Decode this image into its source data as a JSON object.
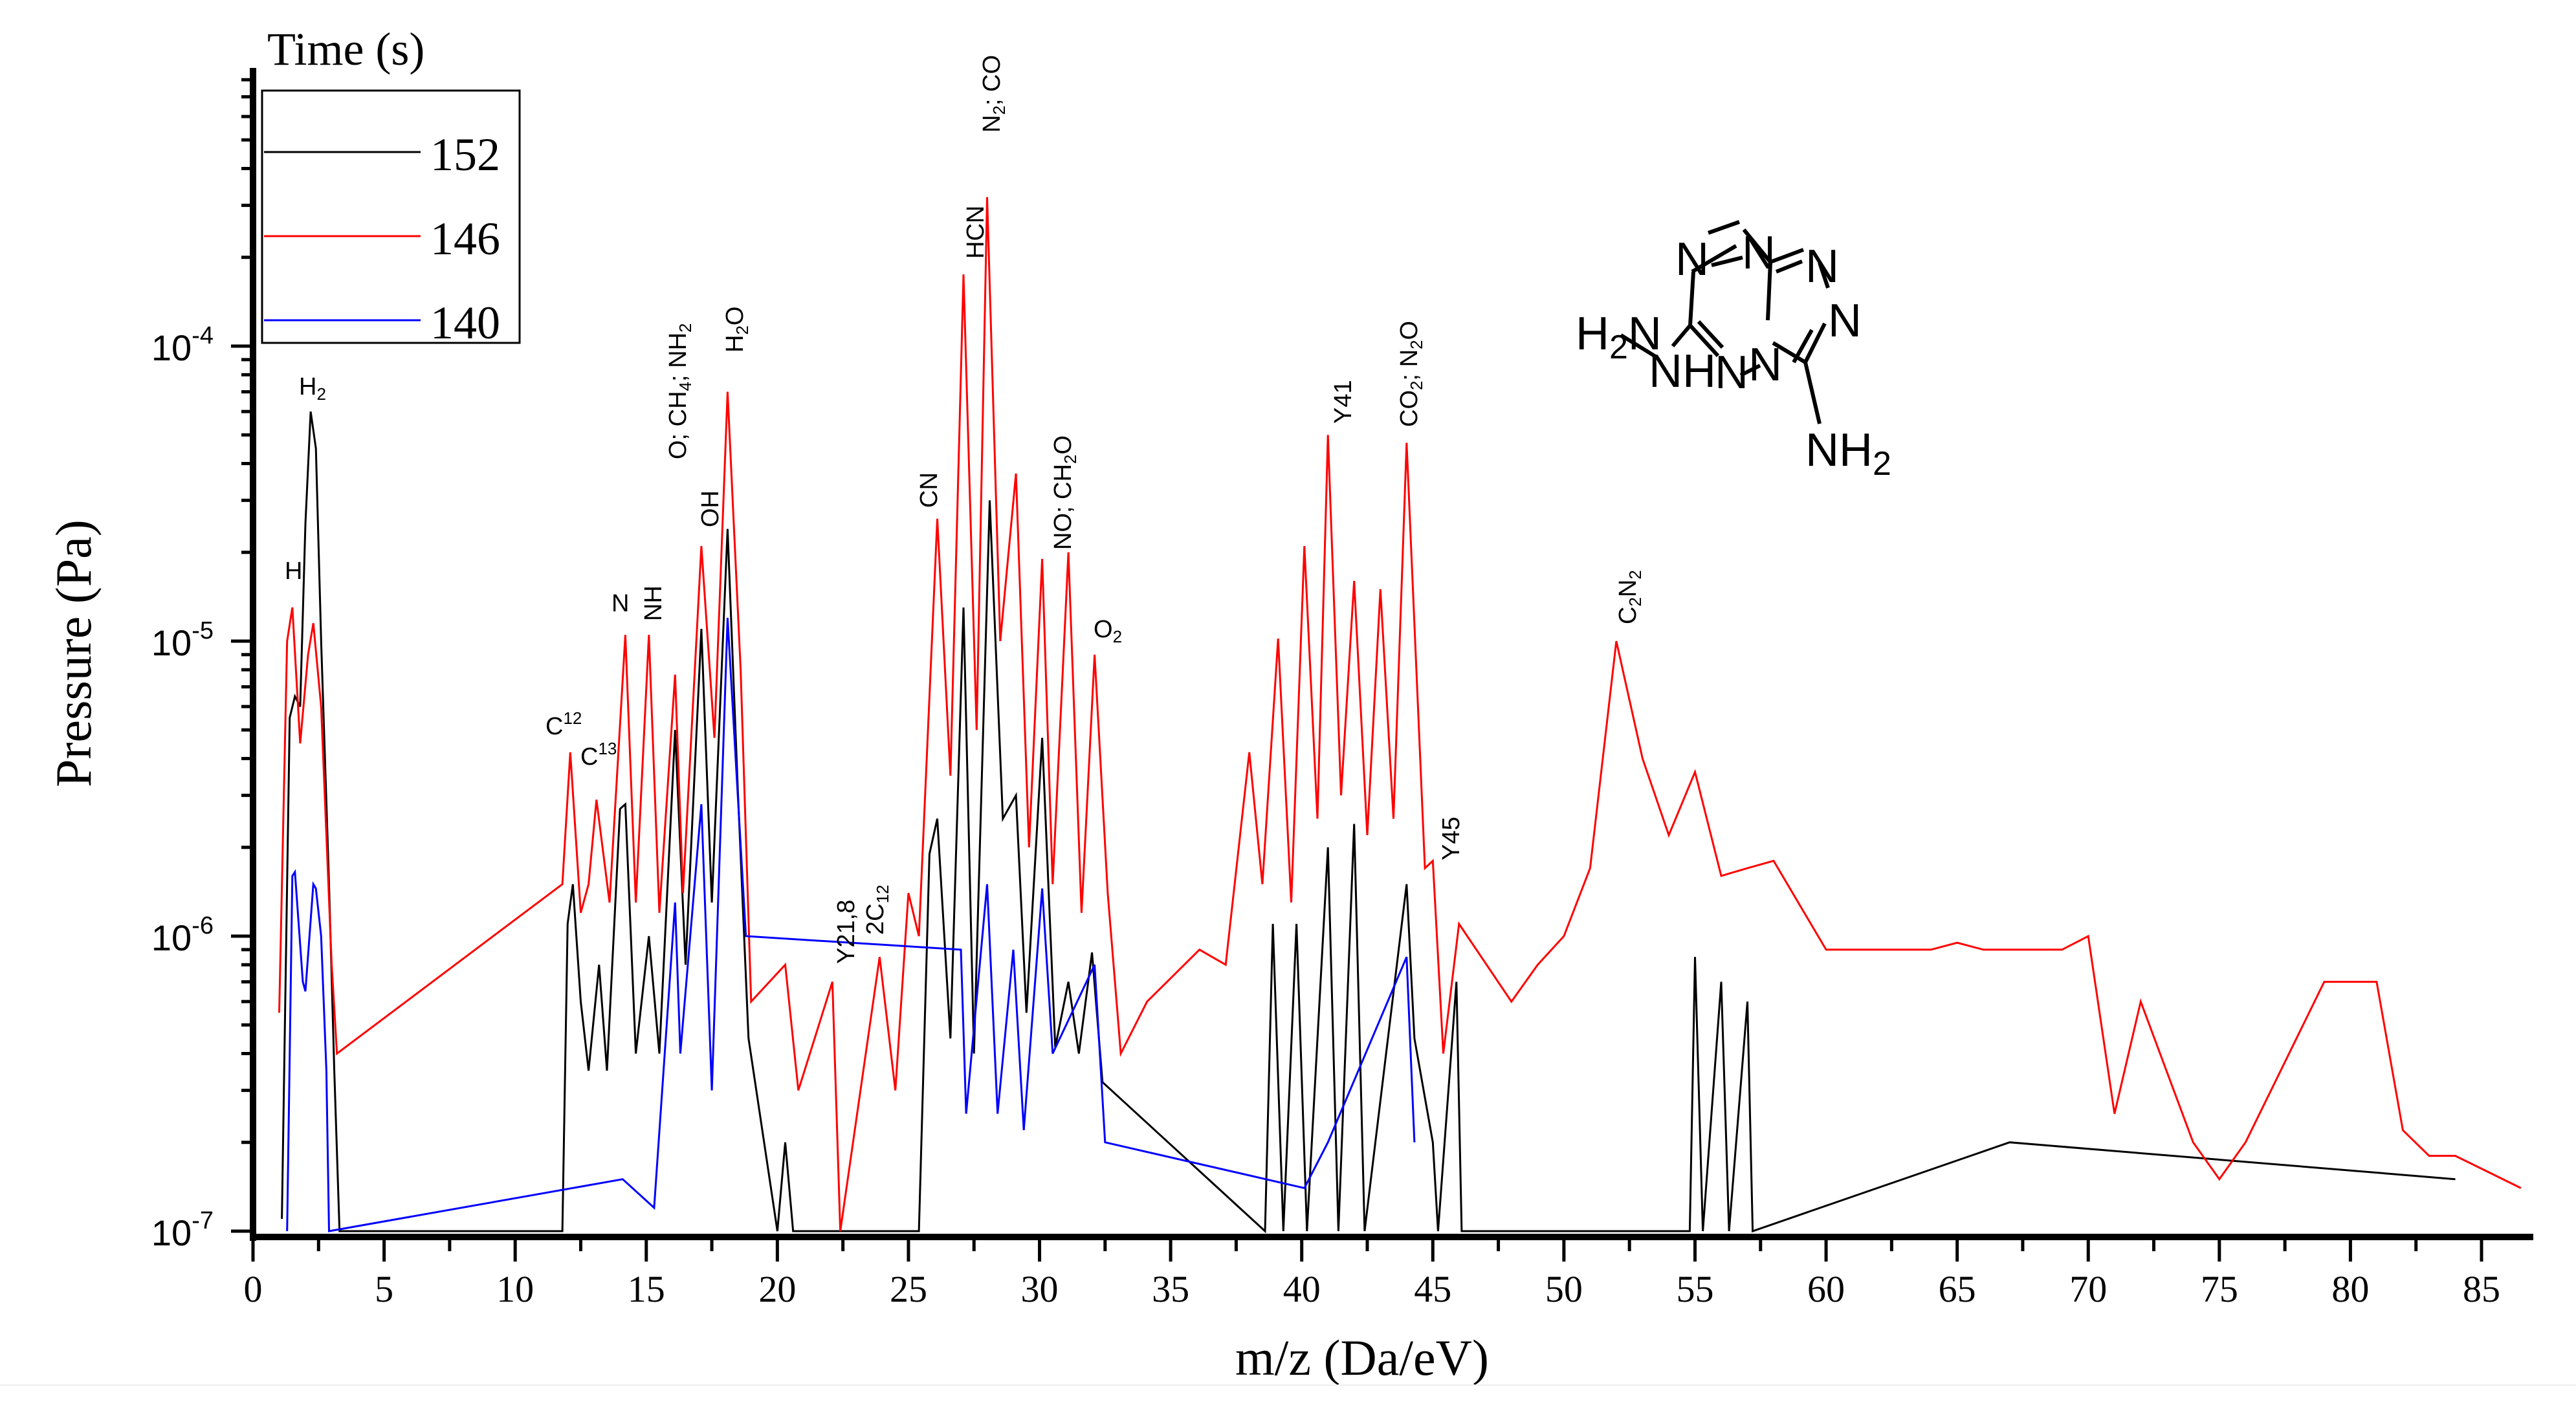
{
  "chart_data": {
    "type": "line",
    "title": "",
    "xlabel": "m/z (Da/eV)",
    "ylabel": "Pressure (Pa)",
    "xlim": [
      0,
      87
    ],
    "ylim": [
      1e-07,
      0.0008
    ],
    "yscale": "log",
    "grid": false,
    "x_ticks": [
      0,
      5,
      10,
      15,
      20,
      25,
      30,
      35,
      40,
      45,
      50,
      55,
      60,
      65,
      70,
      75,
      80,
      85
    ],
    "y_ticks": [
      {
        "value": 0.0001,
        "base": "10",
        "exp": "-4"
      },
      {
        "value": 1e-05,
        "base": "10",
        "exp": "-5"
      },
      {
        "value": 1e-06,
        "base": "10",
        "exp": "-6"
      },
      {
        "value": 1e-07,
        "base": "10",
        "exp": "-7"
      }
    ],
    "legend": {
      "title": "Time (s)",
      "position": "upper-left",
      "entries": [
        {
          "label": "152",
          "color": "#000000"
        },
        {
          "label": "146",
          "color": "#ff0000"
        },
        {
          "label": "140",
          "color": "#0000ff"
        }
      ]
    },
    "series": [
      {
        "name": "152",
        "color": "#000000",
        "points": [
          [
            1.1,
            1.1e-07
          ],
          [
            1.4,
            5.5e-06
          ],
          [
            1.6,
            6.5e-06
          ],
          [
            1.8,
            6e-06
          ],
          [
            2.0,
            2.5e-05
          ],
          [
            2.2,
            6e-05
          ],
          [
            2.4,
            4.5e-05
          ],
          [
            2.6,
            1e-05
          ],
          [
            2.9,
            1.5e-06
          ],
          [
            3.1,
            3.5e-07
          ],
          [
            3.3,
            1e-07
          ],
          [
            11.8,
            1e-07
          ],
          [
            12.0,
            1.1e-06
          ],
          [
            12.2,
            1.5e-06
          ],
          [
            12.5,
            6e-07
          ],
          [
            12.8,
            3.5e-07
          ],
          [
            13.2,
            8e-07
          ],
          [
            13.5,
            3.5e-07
          ],
          [
            14.0,
            2.7e-06
          ],
          [
            14.2,
            2.8e-06
          ],
          [
            14.6,
            4e-07
          ],
          [
            15.1,
            1e-06
          ],
          [
            15.5,
            4e-07
          ],
          [
            16.1,
            5e-06
          ],
          [
            16.5,
            8e-07
          ],
          [
            17.1,
            1.1e-05
          ],
          [
            17.5,
            1.3e-06
          ],
          [
            18.1,
            2.4e-05
          ],
          [
            18.5,
            3e-06
          ],
          [
            18.9,
            4.5e-07
          ],
          [
            20.0,
            1e-07
          ],
          [
            20.3,
            2e-07
          ],
          [
            20.6,
            1e-07
          ],
          [
            25.4,
            1e-07
          ],
          [
            25.8,
            1.9e-06
          ],
          [
            26.1,
            2.5e-06
          ],
          [
            26.6,
            4.5e-07
          ],
          [
            27.1,
            1.3e-05
          ],
          [
            27.5,
            4e-07
          ],
          [
            28.1,
            3e-05
          ],
          [
            28.6,
            2.5e-06
          ],
          [
            29.1,
            3e-06
          ],
          [
            29.5,
            5.5e-07
          ],
          [
            30.1,
            4.7e-06
          ],
          [
            30.6,
            4.2e-07
          ],
          [
            31.1,
            7e-07
          ],
          [
            31.5,
            4e-07
          ],
          [
            32.0,
            8.8e-07
          ],
          [
            32.4,
            3.2e-07
          ],
          [
            38.6,
            1e-07
          ],
          [
            38.9,
            1.1e-06
          ],
          [
            39.3,
            1e-07
          ],
          [
            39.8,
            1.1e-06
          ],
          [
            40.2,
            1e-07
          ],
          [
            41.0,
            2e-06
          ],
          [
            41.4,
            1e-07
          ],
          [
            42.0,
            2.4e-06
          ],
          [
            42.4,
            1e-07
          ],
          [
            44.0,
            1.5e-06
          ],
          [
            44.3,
            4.5e-07
          ],
          [
            45.0,
            2e-07
          ],
          [
            45.2,
            1e-07
          ],
          [
            45.9,
            7e-07
          ],
          [
            46.1,
            1e-07
          ],
          [
            54.8,
            1e-07
          ],
          [
            55.0,
            8.5e-07
          ],
          [
            55.3,
            1e-07
          ],
          [
            56.0,
            7e-07
          ],
          [
            56.3,
            1e-07
          ],
          [
            57.0,
            6e-07
          ],
          [
            57.2,
            1e-07
          ],
          [
            67.0,
            2e-07
          ],
          [
            84.0,
            1.5e-07
          ]
        ]
      },
      {
        "name": "146",
        "color": "#ff0000",
        "points": [
          [
            1.0,
            5.5e-07
          ],
          [
            1.3,
            1e-05
          ],
          [
            1.5,
            1.3e-05
          ],
          [
            1.8,
            4.5e-06
          ],
          [
            2.1,
            9e-06
          ],
          [
            2.3,
            1.15e-05
          ],
          [
            2.6,
            6e-06
          ],
          [
            3.0,
            8e-07
          ],
          [
            3.2,
            4e-07
          ],
          [
            11.8,
            1.5e-06
          ],
          [
            12.1,
            4.2e-06
          ],
          [
            12.5,
            1.2e-06
          ],
          [
            12.8,
            1.5e-06
          ],
          [
            13.1,
            2.9e-06
          ],
          [
            13.6,
            1.3e-06
          ],
          [
            14.2,
            1.05e-05
          ],
          [
            14.6,
            1.3e-06
          ],
          [
            15.1,
            1.05e-05
          ],
          [
            15.5,
            1.2e-06
          ],
          [
            16.1,
            7.7e-06
          ],
          [
            16.4,
            1.4e-06
          ],
          [
            17.1,
            2.1e-05
          ],
          [
            17.6,
            4.7e-06
          ],
          [
            18.1,
            7e-05
          ],
          [
            18.6,
            8e-06
          ],
          [
            19.0,
            6e-07
          ],
          [
            20.3,
            8e-07
          ],
          [
            20.8,
            3e-07
          ],
          [
            22.1,
            7e-07
          ],
          [
            22.4,
            1e-07
          ],
          [
            23.9,
            8.5e-07
          ],
          [
            24.5,
            3e-07
          ],
          [
            25.0,
            1.4e-06
          ],
          [
            25.4,
            1e-06
          ],
          [
            26.1,
            2.6e-05
          ],
          [
            26.6,
            3.5e-06
          ],
          [
            27.1,
            0.000175
          ],
          [
            27.6,
            5e-06
          ],
          [
            28.0,
            0.00032
          ],
          [
            28.5,
            1e-05
          ],
          [
            29.1,
            3.7e-05
          ],
          [
            29.6,
            2e-06
          ],
          [
            30.1,
            1.9e-05
          ],
          [
            30.5,
            1.5e-06
          ],
          [
            31.1,
            2e-05
          ],
          [
            31.6,
            1.2e-06
          ],
          [
            32.1,
            9e-06
          ],
          [
            32.6,
            1.4e-06
          ],
          [
            33.1,
            4e-07
          ],
          [
            34.1,
            6e-07
          ],
          [
            36.1,
            9e-07
          ],
          [
            37.1,
            8e-07
          ],
          [
            38.0,
            4.2e-06
          ],
          [
            38.5,
            1.5e-06
          ],
          [
            39.1,
            1.02e-05
          ],
          [
            39.6,
            1.3e-06
          ],
          [
            40.1,
            2.1e-05
          ],
          [
            40.6,
            2.5e-06
          ],
          [
            41.0,
            5e-05
          ],
          [
            41.5,
            3e-06
          ],
          [
            42.0,
            1.6e-05
          ],
          [
            42.5,
            2.2e-06
          ],
          [
            43.0,
            1.5e-05
          ],
          [
            43.5,
            2.5e-06
          ],
          [
            44.0,
            4.7e-05
          ],
          [
            44.7,
            1.7e-06
          ],
          [
            45.0,
            1.8e-06
          ],
          [
            45.4,
            4e-07
          ],
          [
            46.0,
            1.1e-06
          ],
          [
            48.0,
            6e-07
          ],
          [
            49.0,
            8e-07
          ],
          [
            50.0,
            1e-06
          ],
          [
            51.0,
            1.7e-06
          ],
          [
            52.0,
            1e-05
          ],
          [
            53.0,
            4e-06
          ],
          [
            54.0,
            2.2e-06
          ],
          [
            55.0,
            3.6e-06
          ],
          [
            56.0,
            1.6e-06
          ],
          [
            57.0,
            1.7e-06
          ],
          [
            58.0,
            1.8e-06
          ],
          [
            60.0,
            9e-07
          ],
          [
            63.0,
            9e-07
          ],
          [
            64.0,
            9e-07
          ],
          [
            65.0,
            9.5e-07
          ],
          [
            66.0,
            9e-07
          ],
          [
            67.0,
            9e-07
          ],
          [
            68.0,
            9e-07
          ],
          [
            69.0,
            9e-07
          ],
          [
            70.0,
            1e-06
          ],
          [
            71.0,
            2.5e-07
          ],
          [
            72.0,
            6e-07
          ],
          [
            74.0,
            2e-07
          ],
          [
            75.0,
            1.5e-07
          ],
          [
            76.0,
            2e-07
          ],
          [
            79.0,
            7e-07
          ],
          [
            81.0,
            7e-07
          ],
          [
            82.0,
            2.2e-07
          ],
          [
            83.0,
            1.8e-07
          ],
          [
            84.0,
            1.8e-07
          ],
          [
            86.5,
            1.4e-07
          ]
        ]
      },
      {
        "name": "140",
        "color": "#0000ff",
        "points": [
          [
            1.3,
            1e-07
          ],
          [
            1.5,
            1.6e-06
          ],
          [
            1.6,
            1.65e-06
          ],
          [
            1.9,
            7e-07
          ],
          [
            2.0,
            6.5e-07
          ],
          [
            2.3,
            1.5e-06
          ],
          [
            2.4,
            1.45e-06
          ],
          [
            2.6,
            1e-06
          ],
          [
            2.8,
            3.5e-07
          ],
          [
            2.9,
            1e-07
          ],
          [
            14.1,
            1.5e-07
          ],
          [
            15.3,
            1.2e-07
          ],
          [
            16.1,
            1.3e-06
          ],
          [
            16.3,
            4e-07
          ],
          [
            17.1,
            2.8e-06
          ],
          [
            17.5,
            3e-07
          ],
          [
            18.1,
            1.2e-05
          ],
          [
            18.8,
            1e-06
          ],
          [
            27.0,
            9e-07
          ],
          [
            27.2,
            2.5e-07
          ],
          [
            28.0,
            1.5e-06
          ],
          [
            28.4,
            2.5e-07
          ],
          [
            29.0,
            9e-07
          ],
          [
            29.4,
            2.2e-07
          ],
          [
            30.1,
            1.45e-06
          ],
          [
            30.5,
            4e-07
          ],
          [
            32.1,
            8e-07
          ],
          [
            32.5,
            2e-07
          ],
          [
            40.1,
            1.4e-07
          ],
          [
            41.0,
            2e-07
          ],
          [
            44.0,
            8.5e-07
          ],
          [
            44.3,
            2e-07
          ]
        ]
      }
    ],
    "annotations": [
      {
        "text": "H",
        "x": 1.3,
        "rotated": false
      },
      {
        "text": "H",
        "sub": "2",
        "x": 2.2,
        "rotated": false
      },
      {
        "text": "C",
        "sup": "12",
        "x": 12.0,
        "rotated": false
      },
      {
        "text": "C",
        "sup": "13",
        "x": 13.0,
        "rotated": false
      },
      {
        "text": "N",
        "x": 14.0,
        "rotated": false
      },
      {
        "text": "NH",
        "x": 15.0,
        "rotated": true
      },
      {
        "text": "O; CH4; NH2",
        "x": 16.0,
        "rotated": true
      },
      {
        "text": "OH",
        "x": 17.0,
        "rotated": true
      },
      {
        "text": "H2O",
        "x": 18.0,
        "rotated": true
      },
      {
        "text": "Y21,8",
        "x": 22.0,
        "rotated": true
      },
      {
        "text": "2C12",
        "x": 24.0,
        "rotated": true
      },
      {
        "text": "CN",
        "x": 26.0,
        "rotated": true
      },
      {
        "text": "HCN",
        "x": 27.0,
        "rotated": true
      },
      {
        "text": "N2; CO",
        "x": 28.0,
        "rotated": true
      },
      {
        "text": "NO; CH2O",
        "x": 30.0,
        "rotated": true
      },
      {
        "text": "O2",
        "x": 32.0,
        "rotated": false
      },
      {
        "text": "Y41",
        "x": 41.0,
        "rotated": true
      },
      {
        "text": "CO2; N2O",
        "x": 44.0,
        "rotated": true
      },
      {
        "text": "Y45",
        "x": 45.0,
        "rotated": true
      },
      {
        "text": "C2N2",
        "x": 52.0,
        "rotated": true
      }
    ],
    "inset_structure": {
      "description": "Molecular structure: hydrazinyl-amino triazolo-tetrazine",
      "atom_labels": [
        "N",
        "N",
        "N",
        "N",
        "N",
        "N",
        "H2N",
        "NH",
        "NH2"
      ]
    }
  }
}
